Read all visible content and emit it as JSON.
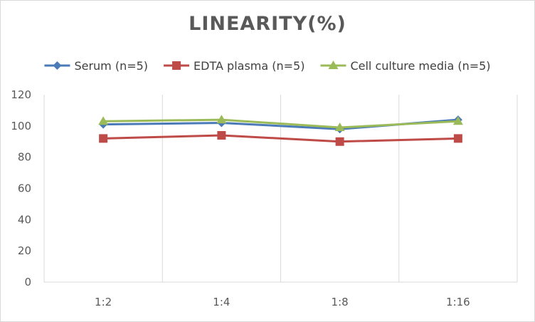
{
  "chart_data": {
    "type": "line",
    "title": "LINEARITY(%)",
    "categories": [
      "1:2",
      "1:4",
      "1:8",
      "1:16"
    ],
    "ylim": [
      0,
      120
    ],
    "yticks": [
      0,
      20,
      40,
      60,
      80,
      100,
      120
    ],
    "grid": "vertical",
    "legend_position": "top",
    "series": [
      {
        "name": "Serum (n=5)",
        "values": [
          101,
          102,
          98,
          104
        ],
        "color": "#4a7ab8",
        "marker": "diamond"
      },
      {
        "name": "EDTA plasma (n=5)",
        "values": [
          92,
          94,
          90,
          92
        ],
        "color": "#be4b48",
        "marker": "square"
      },
      {
        "name": "Cell culture media (n=5)",
        "values": [
          103,
          104,
          99,
          103
        ],
        "color": "#9bbb59",
        "marker": "triangle"
      }
    ]
  }
}
